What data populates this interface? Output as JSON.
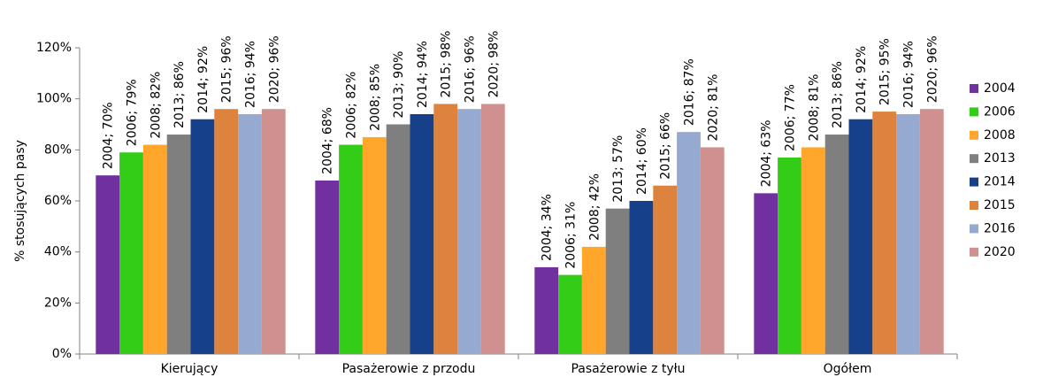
{
  "chart_data": {
    "type": "bar",
    "title": "",
    "xlabel": "",
    "ylabel": "% stosujących pasy",
    "ylim": [
      0,
      120
    ],
    "yticks": [
      0,
      20,
      40,
      60,
      80,
      100,
      120
    ],
    "ytick_labels": [
      "0%",
      "20%",
      "40%",
      "60%",
      "80%",
      "100%",
      "120%"
    ],
    "categories": [
      "Kierujący",
      "Pasażerowie z przodu",
      "Pasażerowie z tyłu",
      "Ogółem"
    ],
    "grid": false,
    "legend_position": "right",
    "series": [
      {
        "name": "2004",
        "color": "#7030A0",
        "values": [
          70,
          68,
          34,
          63
        ],
        "labels": [
          "2004; 70%",
          "2004; 68%",
          "2004; 34%",
          "2004; 63%"
        ]
      },
      {
        "name": "2006",
        "color": "#33CC16",
        "values": [
          79,
          82,
          31,
          77
        ],
        "labels": [
          "2006; 79%",
          "2006; 82%",
          "2006; 31%",
          "2006; 77%"
        ]
      },
      {
        "name": "2008",
        "color": "#FFA62B",
        "values": [
          82,
          85,
          42,
          81
        ],
        "labels": [
          "2008; 82%",
          "2008; 85%",
          "2008; 42%",
          "2008; 81%"
        ]
      },
      {
        "name": "2013",
        "color": "#7F7F7F",
        "values": [
          86,
          90,
          57,
          86
        ],
        "labels": [
          "2013; 86%",
          "2013; 90%",
          "2013; 57%",
          "2013; 86%"
        ]
      },
      {
        "name": "2014",
        "color": "#17408B",
        "values": [
          92,
          94,
          60,
          92
        ],
        "labels": [
          "2014; 92%",
          "2014; 94%",
          "2014; 60%",
          "2014; 92%"
        ]
      },
      {
        "name": "2015",
        "color": "#DE833E",
        "values": [
          96,
          98,
          66,
          95
        ],
        "labels": [
          "2015; 96%",
          "2015; 98%",
          "2015; 66%",
          "2015; 95%"
        ]
      },
      {
        "name": "2016",
        "color": "#95A9D1",
        "values": [
          94,
          96,
          87,
          94
        ],
        "labels": [
          "2016; 94%",
          "2016; 96%",
          "2016; 87%",
          "2016; 94%"
        ]
      },
      {
        "name": "2020",
        "color": "#D09090",
        "values": [
          96,
          98,
          81,
          96
        ],
        "labels": [
          "2020; 96%",
          "2020; 98%",
          "2020; 81%",
          "2020; 96%"
        ]
      }
    ]
  }
}
